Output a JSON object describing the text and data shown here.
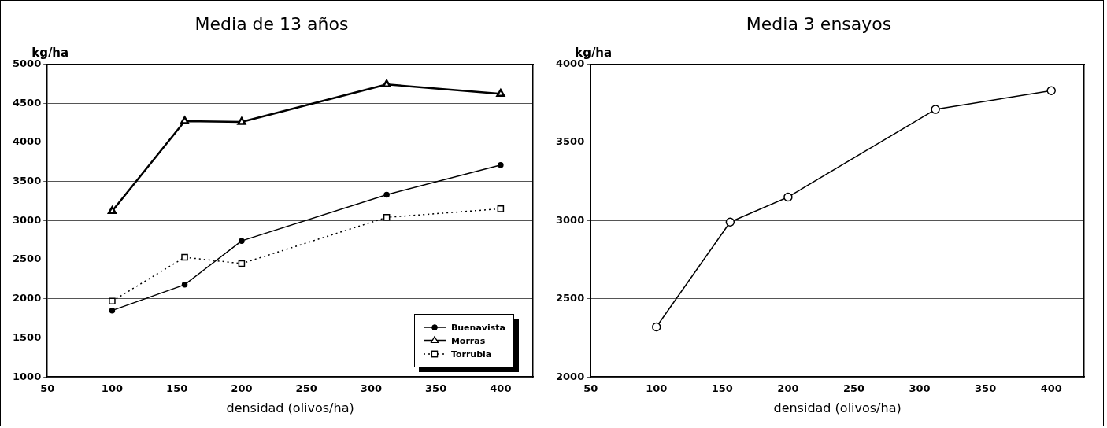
{
  "chart_data": [
    {
      "type": "line",
      "title": "Media de 13 años",
      "xlabel": "densidad (olivos/ha)",
      "ylabel": "kg/ha",
      "xlim": [
        50,
        425
      ],
      "xticks": [
        50,
        100,
        150,
        200,
        250,
        300,
        350,
        400
      ],
      "ylim": [
        1000,
        5000
      ],
      "yticks": [
        1000,
        1500,
        2000,
        2500,
        3000,
        3500,
        4000,
        4500,
        5000
      ],
      "grid": "y",
      "legend": "bottom right",
      "series": [
        {
          "name": "Buenavista",
          "color": "#000000",
          "marker": "circle",
          "line_style": "solid",
          "x": [
            100,
            156,
            200,
            312,
            400
          ],
          "values": [
            1850,
            2180,
            2740,
            3330,
            3710
          ]
        },
        {
          "name": "Morras",
          "color": "#000000",
          "marker": "triangle",
          "line_style": "solid",
          "x": [
            100,
            156,
            200,
            312,
            400
          ],
          "values": [
            3120,
            4270,
            4260,
            4740,
            4620
          ]
        },
        {
          "name": "Torrubia",
          "color": "#000000",
          "marker": "square",
          "line_style": "dotted",
          "x": [
            100,
            156,
            200,
            312,
            400
          ],
          "values": [
            1970,
            2530,
            2450,
            3040,
            3150
          ]
        }
      ]
    },
    {
      "type": "line",
      "title": "Media 3 ensayos",
      "xlabel": "densidad (olivos/ha)",
      "ylabel": "kg/ha",
      "xlim": [
        50,
        425
      ],
      "xticks": [
        50,
        100,
        150,
        200,
        250,
        300,
        350,
        400
      ],
      "ylim": [
        2000,
        4000
      ],
      "yticks": [
        2000,
        2500,
        3000,
        3500,
        4000
      ],
      "grid": "y",
      "marker": "circle",
      "line_style": "solid",
      "series": [
        {
          "color": "#000000",
          "x": [
            100,
            156,
            200,
            312,
            400
          ],
          "values": [
            2320,
            2990,
            3150,
            3710,
            3830
          ]
        }
      ]
    }
  ]
}
